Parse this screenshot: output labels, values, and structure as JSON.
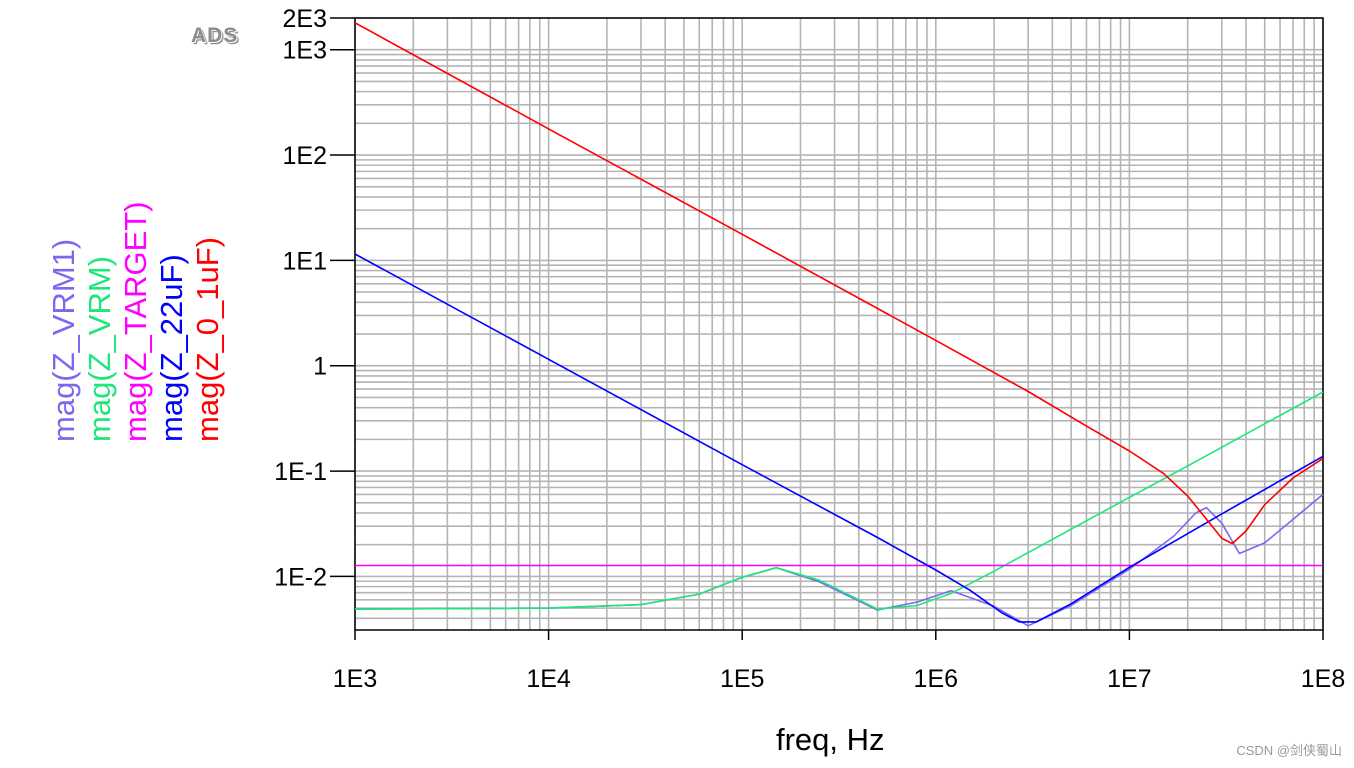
{
  "logo": "ADS",
  "watermark": "CSDN @剑侠蜀山",
  "chart_data": {
    "type": "line",
    "xlabel": "freq, Hz",
    "ylabel": "",
    "x_scale": "log",
    "y_scale": "log",
    "xlim": [
      1000,
      100000000
    ],
    "ylim": [
      0.0031,
      2000
    ],
    "grid": true,
    "x_ticks": [
      {
        "value": 1000,
        "label": "1E3"
      },
      {
        "value": 10000,
        "label": "1E4"
      },
      {
        "value": 100000,
        "label": "1E5"
      },
      {
        "value": 1000000,
        "label": "1E6"
      },
      {
        "value": 10000000,
        "label": "1E7"
      },
      {
        "value": 100000000,
        "label": "1E8"
      }
    ],
    "y_ticks": [
      {
        "value": 2000,
        "label": "2E3"
      },
      {
        "value": 1000,
        "label": "1E3"
      },
      {
        "value": 100,
        "label": "1E2"
      },
      {
        "value": 10,
        "label": "1E1"
      },
      {
        "value": 1,
        "label": "1"
      },
      {
        "value": 0.1,
        "label": "1E-1"
      },
      {
        "value": 0.01,
        "label": "1E-2"
      }
    ],
    "series": [
      {
        "name": "mag(Z_VRM1)",
        "color": "#7b68ee",
        "x": [
          1000,
          10000,
          30000,
          60000,
          100000,
          150000,
          250000,
          500000,
          800000,
          1200000,
          2000000,
          3000000,
          5000000,
          10000000,
          17000000,
          22000000,
          25000000,
          30000000,
          37000000,
          50000000,
          100000000
        ],
        "y": [
          0.0049,
          0.005,
          0.0054,
          0.0068,
          0.0098,
          0.0121,
          0.0089,
          0.0048,
          0.0057,
          0.0073,
          0.0052,
          0.0034,
          0.0053,
          0.0117,
          0.0242,
          0.04,
          0.045,
          0.032,
          0.0165,
          0.0208,
          0.06
        ]
      },
      {
        "name": "mag(Z_VRM)",
        "color": "#1ee67a",
        "x": [
          1000,
          10000,
          30000,
          60000,
          100000,
          150000,
          250000,
          500000,
          800000,
          1200000,
          2000000,
          5000000,
          10000000,
          20000000,
          50000000,
          100000000
        ],
        "y": [
          0.0049,
          0.005,
          0.0054,
          0.0068,
          0.0098,
          0.0121,
          0.0092,
          0.0049,
          0.0053,
          0.0069,
          0.0112,
          0.0281,
          0.0563,
          0.112,
          0.281,
          0.563
        ]
      },
      {
        "name": "mag(Z_TARGET)",
        "color": "#ff00ff",
        "x": [
          1000,
          100000000
        ],
        "y": [
          0.0127,
          0.0127
        ]
      },
      {
        "name": "mag(Z_22uF)",
        "color": "#0000ff",
        "x": [
          1000,
          10000,
          100000,
          500000,
          1000000,
          1500000,
          2200000,
          2700000,
          3300000,
          5000000,
          10000000,
          30000000,
          100000000
        ],
        "y": [
          11.5,
          1.15,
          0.115,
          0.0234,
          0.0115,
          0.0074,
          0.0045,
          0.0037,
          0.0037,
          0.0055,
          0.0122,
          0.0392,
          0.138
        ]
      },
      {
        "name": "mag(Z_0_1uF)",
        "color": "#ff0000",
        "x": [
          1000,
          10000,
          100000,
          1000000,
          3000000,
          6000000,
          10000000,
          15000000,
          20000000,
          25000000,
          30000000,
          34000000,
          40000000,
          50000000,
          70000000,
          100000000
        ],
        "y": [
          1800,
          177,
          17.7,
          1.74,
          0.57,
          0.267,
          0.155,
          0.095,
          0.058,
          0.035,
          0.023,
          0.0205,
          0.027,
          0.048,
          0.086,
          0.132
        ]
      }
    ]
  }
}
